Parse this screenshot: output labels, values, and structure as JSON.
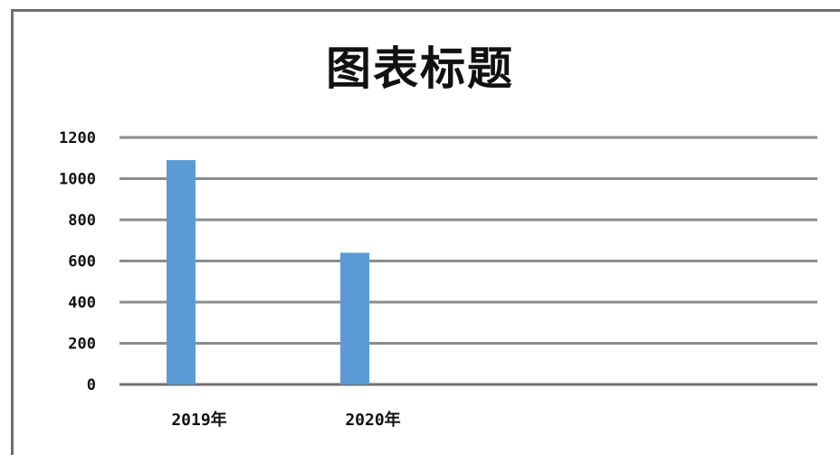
{
  "chart_data": {
    "type": "bar",
    "title": "图表标题",
    "categories": [
      "2019年",
      "2020年"
    ],
    "values": [
      1090,
      640
    ],
    "ylim": [
      0,
      1200
    ],
    "yticks": [
      0,
      200,
      400,
      600,
      800,
      1000,
      1200
    ],
    "grid": true,
    "bar_color": "#5b9bd5",
    "grid_color": "#8c8c8c"
  }
}
